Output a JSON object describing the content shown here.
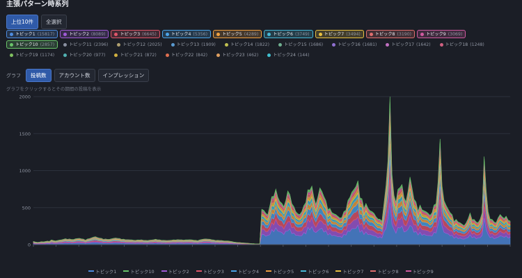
{
  "header": {
    "title": "主張パターン時系列"
  },
  "range_tabs": [
    {
      "label": "上位10件",
      "active": true
    },
    {
      "label": "全選択",
      "active": false
    }
  ],
  "topics": [
    {
      "label": "トピック1",
      "count": "(15817)",
      "color": "#4e8ce0",
      "selected": true
    },
    {
      "label": "トピック2",
      "count": "(8089)",
      "color": "#a05ad6",
      "selected": true
    },
    {
      "label": "トピック3",
      "count": "(6645)",
      "color": "#e0566a",
      "selected": true
    },
    {
      "label": "トピック4",
      "count": "(5356)",
      "color": "#4aa3e8",
      "selected": true
    },
    {
      "label": "トピック5",
      "count": "(4289)",
      "color": "#f0a040",
      "selected": true
    },
    {
      "label": "トピック6",
      "count": "(3749)",
      "color": "#47b8d6",
      "selected": true
    },
    {
      "label": "トピック7",
      "count": "(3494)",
      "color": "#e8c040",
      "selected": true
    },
    {
      "label": "トピック8",
      "count": "(3190)",
      "color": "#e06e6e",
      "selected": true
    },
    {
      "label": "トピック9",
      "count": "(3069)",
      "color": "#d05aa0",
      "selected": true
    },
    {
      "label": "トピック10",
      "count": "(2857)",
      "color": "#6ac46a",
      "selected": true
    },
    {
      "label": "トピック11",
      "count": "(2396)",
      "color": "#8a90a0",
      "selected": false
    },
    {
      "label": "トピック12",
      "count": "(2025)",
      "color": "#b0a070",
      "selected": false
    },
    {
      "label": "トピック13",
      "count": "(1909)",
      "color": "#5a9ad0",
      "selected": false
    },
    {
      "label": "トピック14",
      "count": "(1822)",
      "color": "#c0c050",
      "selected": false
    },
    {
      "label": "トピック15",
      "count": "(1686)",
      "color": "#70b090",
      "selected": false
    },
    {
      "label": "トピック16",
      "count": "(1681)",
      "color": "#9070d0",
      "selected": false
    },
    {
      "label": "トピック17",
      "count": "(1642)",
      "color": "#c070c0",
      "selected": false
    },
    {
      "label": "トピック18",
      "count": "(1248)",
      "color": "#d06080",
      "selected": false
    },
    {
      "label": "トピック19",
      "count": "(1174)",
      "color": "#80c060",
      "selected": false
    },
    {
      "label": "トピック20",
      "count": "(977)",
      "color": "#50b0b0",
      "selected": false
    },
    {
      "label": "トピック21",
      "count": "(872)",
      "color": "#d0b040",
      "selected": false
    },
    {
      "label": "トピック22",
      "count": "(842)",
      "color": "#e07050",
      "selected": false
    },
    {
      "label": "トピック23",
      "count": "(462)",
      "color": "#e0a060",
      "selected": false
    },
    {
      "label": "トピック24",
      "count": "(144)",
      "color": "#40c0d0",
      "selected": false
    }
  ],
  "graph_controls": {
    "label": "グラフ",
    "metrics": [
      {
        "label": "投稿数",
        "active": true
      },
      {
        "label": "アカウント数",
        "active": false
      },
      {
        "label": "インプレッション",
        "active": false
      }
    ]
  },
  "hint": "グラフをクリックするとその期間の投稿を表示",
  "legend": [
    {
      "label": "トピック1",
      "color": "#4e8ce0"
    },
    {
      "label": "トピック10",
      "color": "#6ac46a"
    },
    {
      "label": "トピック2",
      "color": "#a05ad6"
    },
    {
      "label": "トピック3",
      "color": "#e0566a"
    },
    {
      "label": "トピック4",
      "color": "#4aa3e8"
    },
    {
      "label": "トピック5",
      "color": "#f0a040"
    },
    {
      "label": "トピック6",
      "color": "#47b8d6"
    },
    {
      "label": "トピック7",
      "color": "#e8c040"
    },
    {
      "label": "トピック8",
      "color": "#e06e6e"
    },
    {
      "label": "トピック9",
      "color": "#d05aa0"
    }
  ],
  "chart_data": {
    "type": "area",
    "stacked": true,
    "ylim": [
      0,
      2000
    ],
    "yticks": [
      0,
      500,
      1000,
      1500,
      2000
    ],
    "grid": true,
    "legend_position": "bottom",
    "series_order": [
      "トピック1",
      "トピック2",
      "トピック3",
      "トピック4",
      "トピック5",
      "トピック6",
      "トピック7",
      "トピック8",
      "トピック9",
      "トピック10"
    ],
    "series_colors": [
      "#4e8ce0",
      "#a05ad6",
      "#e0566a",
      "#4aa3e8",
      "#f0a040",
      "#47b8d6",
      "#e8c040",
      "#e06e6e",
      "#d05aa0",
      "#6ac46a"
    ],
    "series_share": [
      0.29,
      0.15,
      0.12,
      0.1,
      0.08,
      0.07,
      0.065,
      0.055,
      0.035,
      0.035
    ],
    "x_tick_labels": [
      "",
      "",
      "",
      "",
      "",
      "",
      "",
      "",
      "",
      "",
      "",
      "",
      "",
      "",
      "",
      "",
      "",
      "",
      "",
      "",
      "",
      ""
    ],
    "totals": [
      40,
      35,
      30,
      32,
      38,
      36,
      42,
      45,
      50,
      60,
      55,
      48,
      52,
      58,
      62,
      70,
      75,
      80,
      72,
      68,
      66,
      74,
      78,
      82,
      76,
      70,
      65,
      72,
      80,
      88,
      95,
      100,
      92,
      85,
      80,
      76,
      72,
      70,
      68,
      74,
      80,
      86,
      82,
      78,
      74,
      70,
      66,
      64,
      62,
      60,
      58,
      56,
      60,
      64,
      62,
      58,
      55,
      52,
      56,
      60,
      64,
      68,
      66,
      62,
      58,
      56,
      54,
      52,
      56,
      58,
      60,
      62,
      64,
      66,
      62,
      58,
      60,
      62,
      64,
      60,
      58,
      56,
      54,
      60,
      66,
      70,
      74,
      72,
      68,
      64,
      60,
      58,
      56,
      54,
      52,
      50,
      48,
      46,
      44,
      40,
      36,
      30,
      28,
      26,
      24,
      22,
      20,
      18,
      16,
      14,
      12,
      10,
      10,
      12,
      460,
      430,
      400,
      380,
      520,
      610,
      650,
      700,
      620,
      560,
      520,
      480,
      560,
      720,
      640,
      560,
      480,
      430,
      400,
      380,
      420,
      500,
      560,
      700,
      760,
      740,
      620,
      520,
      600,
      720,
      680,
      640,
      560,
      500,
      460,
      420,
      400,
      380,
      360,
      340,
      360,
      420,
      500,
      560,
      620,
      680,
      700,
      740,
      820,
      620,
      580,
      540,
      520,
      480,
      440,
      420,
      400,
      360,
      340,
      320,
      360,
      520,
      780,
      1100,
      1880,
      900,
      640,
      560,
      700,
      900,
      760,
      620,
      560,
      680,
      860,
      740,
      600,
      540,
      520,
      500,
      460,
      440,
      420,
      400,
      380,
      420,
      500,
      620,
      800,
      1400,
      760,
      560,
      500,
      460,
      420,
      380,
      340,
      320,
      300,
      280,
      260,
      240,
      280,
      340,
      400,
      360,
      320,
      300,
      280,
      320,
      400,
      1140,
      720,
      420,
      360,
      320,
      300,
      280,
      340,
      380,
      360,
      340,
      360,
      340,
      300
    ]
  }
}
